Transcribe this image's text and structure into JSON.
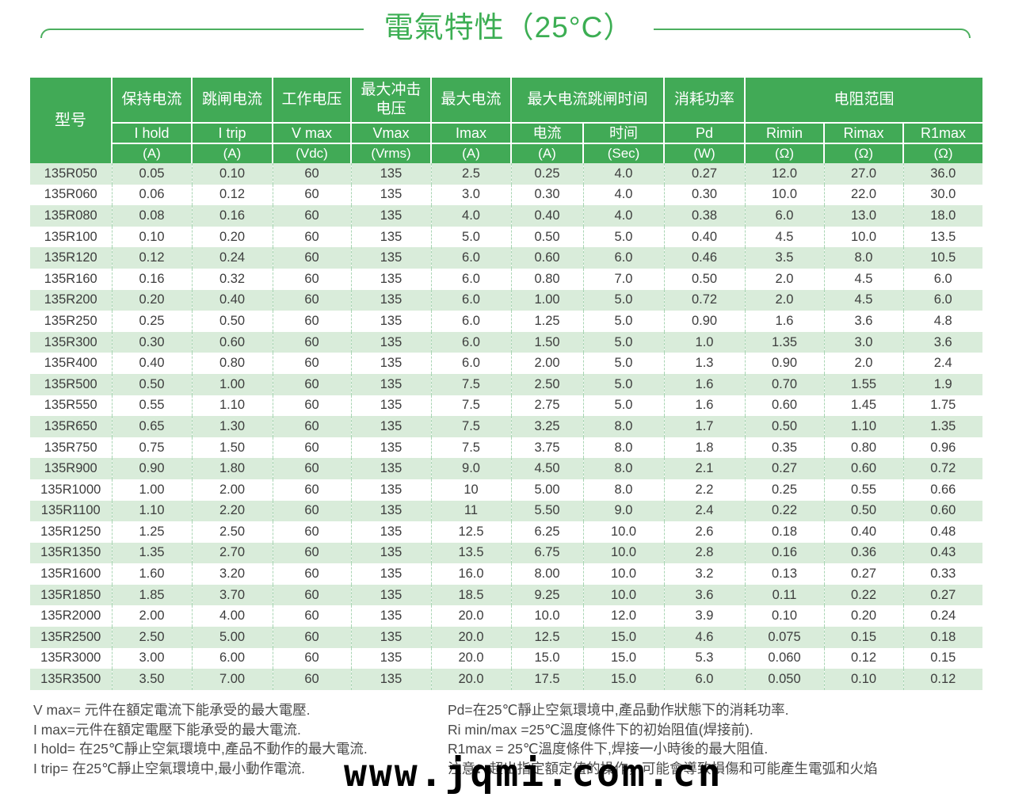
{
  "title": "電氣特性（25°C）",
  "table": {
    "model_header": "型号",
    "groups": [
      {
        "label": "保持电流",
        "cols": [
          {
            "name": "I hold",
            "unit": "(A)"
          }
        ]
      },
      {
        "label": "跳闸电流",
        "cols": [
          {
            "name": "I trip",
            "unit": "(A)"
          }
        ]
      },
      {
        "label": "工作电压",
        "cols": [
          {
            "name": "V max",
            "unit": "(Vdc)"
          }
        ]
      },
      {
        "label": "最大冲击电压",
        "cols": [
          {
            "name": "Vmax",
            "unit": "(Vrms)"
          }
        ]
      },
      {
        "label": "最大电流",
        "cols": [
          {
            "name": "Imax",
            "unit": "(A)"
          }
        ]
      },
      {
        "label": "最大电流跳闸时间",
        "cols": [
          {
            "name": "电流",
            "unit": "(A)"
          },
          {
            "name": "时间",
            "unit": "(Sec)"
          }
        ]
      },
      {
        "label": "消耗功率",
        "cols": [
          {
            "name": "Pd",
            "unit": "(W)"
          }
        ]
      },
      {
        "label": "电阻范围",
        "cols": [
          {
            "name": "Rimin",
            "unit": "(Ω)"
          },
          {
            "name": "Rimax",
            "unit": "(Ω)"
          },
          {
            "name": "R1max",
            "unit": "(Ω)"
          }
        ]
      }
    ],
    "rows": [
      [
        "135R050",
        "0.05",
        "0.10",
        "60",
        "135",
        "2.5",
        "0.25",
        "4.0",
        "0.27",
        "12.0",
        "27.0",
        "36.0"
      ],
      [
        "135R060",
        "0.06",
        "0.12",
        "60",
        "135",
        "3.0",
        "0.30",
        "4.0",
        "0.30",
        "10.0",
        "22.0",
        "30.0"
      ],
      [
        "135R080",
        "0.08",
        "0.16",
        "60",
        "135",
        "4.0",
        "0.40",
        "4.0",
        "0.38",
        "6.0",
        "13.0",
        "18.0"
      ],
      [
        "135R100",
        "0.10",
        "0.20",
        "60",
        "135",
        "5.0",
        "0.50",
        "5.0",
        "0.40",
        "4.5",
        "10.0",
        "13.5"
      ],
      [
        "135R120",
        "0.12",
        "0.24",
        "60",
        "135",
        "6.0",
        "0.60",
        "6.0",
        "0.46",
        "3.5",
        "8.0",
        "10.5"
      ],
      [
        "135R160",
        "0.16",
        "0.32",
        "60",
        "135",
        "6.0",
        "0.80",
        "7.0",
        "0.50",
        "2.0",
        "4.5",
        "6.0"
      ],
      [
        "135R200",
        "0.20",
        "0.40",
        "60",
        "135",
        "6.0",
        "1.00",
        "5.0",
        "0.72",
        "2.0",
        "4.5",
        "6.0"
      ],
      [
        "135R250",
        "0.25",
        "0.50",
        "60",
        "135",
        "6.0",
        "1.25",
        "5.0",
        "0.90",
        "1.6",
        "3.6",
        "4.8"
      ],
      [
        "135R300",
        "0.30",
        "0.60",
        "60",
        "135",
        "6.0",
        "1.50",
        "5.0",
        "1.0",
        "1.35",
        "3.0",
        "3.6"
      ],
      [
        "135R400",
        "0.40",
        "0.80",
        "60",
        "135",
        "6.0",
        "2.00",
        "5.0",
        "1.3",
        "0.90",
        "2.0",
        "2.4"
      ],
      [
        "135R500",
        "0.50",
        "1.00",
        "60",
        "135",
        "7.5",
        "2.50",
        "5.0",
        "1.6",
        "0.70",
        "1.55",
        "1.9"
      ],
      [
        "135R550",
        "0.55",
        "1.10",
        "60",
        "135",
        "7.5",
        "2.75",
        "5.0",
        "1.6",
        "0.60",
        "1.45",
        "1.75"
      ],
      [
        "135R650",
        "0.65",
        "1.30",
        "60",
        "135",
        "7.5",
        "3.25",
        "8.0",
        "1.7",
        "0.50",
        "1.10",
        "1.35"
      ],
      [
        "135R750",
        "0.75",
        "1.50",
        "60",
        "135",
        "7.5",
        "3.75",
        "8.0",
        "1.8",
        "0.35",
        "0.80",
        "0.96"
      ],
      [
        "135R900",
        "0.90",
        "1.80",
        "60",
        "135",
        "9.0",
        "4.50",
        "8.0",
        "2.1",
        "0.27",
        "0.60",
        "0.72"
      ],
      [
        "135R1000",
        "1.00",
        "2.00",
        "60",
        "135",
        "10",
        "5.00",
        "8.0",
        "2.2",
        "0.25",
        "0.55",
        "0.66"
      ],
      [
        "135R1100",
        "1.10",
        "2.20",
        "60",
        "135",
        "11",
        "5.50",
        "9.0",
        "2.4",
        "0.22",
        "0.50",
        "0.60"
      ],
      [
        "135R1250",
        "1.25",
        "2.50",
        "60",
        "135",
        "12.5",
        "6.25",
        "10.0",
        "2.6",
        "0.18",
        "0.40",
        "0.48"
      ],
      [
        "135R1350",
        "1.35",
        "2.70",
        "60",
        "135",
        "13.5",
        "6.75",
        "10.0",
        "2.8",
        "0.16",
        "0.36",
        "0.43"
      ],
      [
        "135R1600",
        "1.60",
        "3.20",
        "60",
        "135",
        "16.0",
        "8.00",
        "10.0",
        "3.2",
        "0.13",
        "0.27",
        "0.33"
      ],
      [
        "135R1850",
        "1.85",
        "3.70",
        "60",
        "135",
        "18.5",
        "9.25",
        "10.0",
        "3.6",
        "0.11",
        "0.22",
        "0.27"
      ],
      [
        "135R2000",
        "2.00",
        "4.00",
        "60",
        "135",
        "20.0",
        "10.0",
        "12.0",
        "3.9",
        "0.10",
        "0.20",
        "0.24"
      ],
      [
        "135R2500",
        "2.50",
        "5.00",
        "60",
        "135",
        "20.0",
        "12.5",
        "15.0",
        "4.6",
        "0.075",
        "0.15",
        "0.18"
      ],
      [
        "135R3000",
        "3.00",
        "6.00",
        "60",
        "135",
        "20.0",
        "15.0",
        "15.0",
        "5.3",
        "0.060",
        "0.12",
        "0.15"
      ],
      [
        "135R3500",
        "3.50",
        "7.00",
        "60",
        "135",
        "20.0",
        "17.5",
        "15.0",
        "6.0",
        "0.050",
        "0.10",
        "0.12"
      ]
    ]
  },
  "footnotes": {
    "left": [
      "V max= 元件在額定電流下能承受的最大電壓.",
      "I max=元件在額定電壓下能承受的最大電流.",
      "I hold= 在25℃靜止空氣環境中,產品不動作的最大電流.",
      "I trip= 在25℃靜止空氣環境中,最小動作電流."
    ],
    "right": [
      "Pd=在25℃靜止空氣環境中,產品動作狀態下的消耗功率.",
      "Ri min/max  =25℃溫度條件下的初始阻值(焊接前).",
      "R1max  = 25℃溫度條件下,焊接一小時後的最大阻值.",
      "注意：超出指定額定值的操作，可能會導致損傷和可能產生電弧和火焰"
    ]
  },
  "watermark": "www.jqmi.com.cn",
  "colors": {
    "header_green": "#41aa56",
    "title_green": "#3cae53",
    "stripe_green": "#d9ecda",
    "divider_green": "#a9d5b4"
  }
}
